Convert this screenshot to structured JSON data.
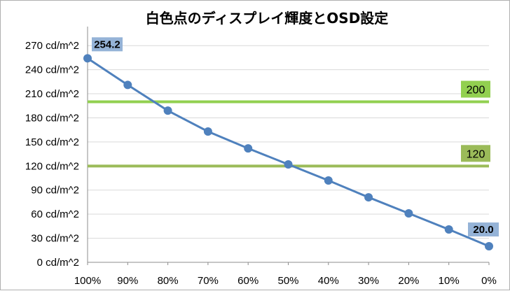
{
  "chart_data": {
    "type": "line",
    "title": "白色点のディスプレイ輝度とOSD設定",
    "categories": [
      "100%",
      "90%",
      "80%",
      "70%",
      "60%",
      "50%",
      "40%",
      "30%",
      "20%",
      "10%",
      "0%"
    ],
    "series": [
      {
        "values": [
          254.2,
          221,
          189,
          163,
          142,
          122,
          102,
          81,
          61,
          41,
          20.0
        ],
        "color": "#4f81bd"
      }
    ],
    "reference_lines": [
      {
        "value": 200,
        "label": "200",
        "color": "#92d050"
      },
      {
        "value": 120,
        "label": "120",
        "color": "#9bbb59"
      }
    ],
    "data_labels": [
      {
        "index": 0,
        "text": "254.2"
      },
      {
        "index": 10,
        "text": "20.0"
      }
    ],
    "y_ticks": [
      0,
      30,
      60,
      90,
      120,
      150,
      180,
      210,
      240,
      270
    ],
    "y_tick_labels": [
      "0 cd/m^2",
      "30 cd/m^2",
      "60 cd/m^2",
      "90 cd/m^2",
      "120 cd/m^2",
      "150 cd/m^2",
      "180 cd/m^2",
      "210 cd/m^2",
      "240 cd/m^2",
      "270 cd/m^2"
    ],
    "ylim": [
      0,
      285
    ],
    "grid": true,
    "legend": "none",
    "label_color": "#95b3d7"
  }
}
